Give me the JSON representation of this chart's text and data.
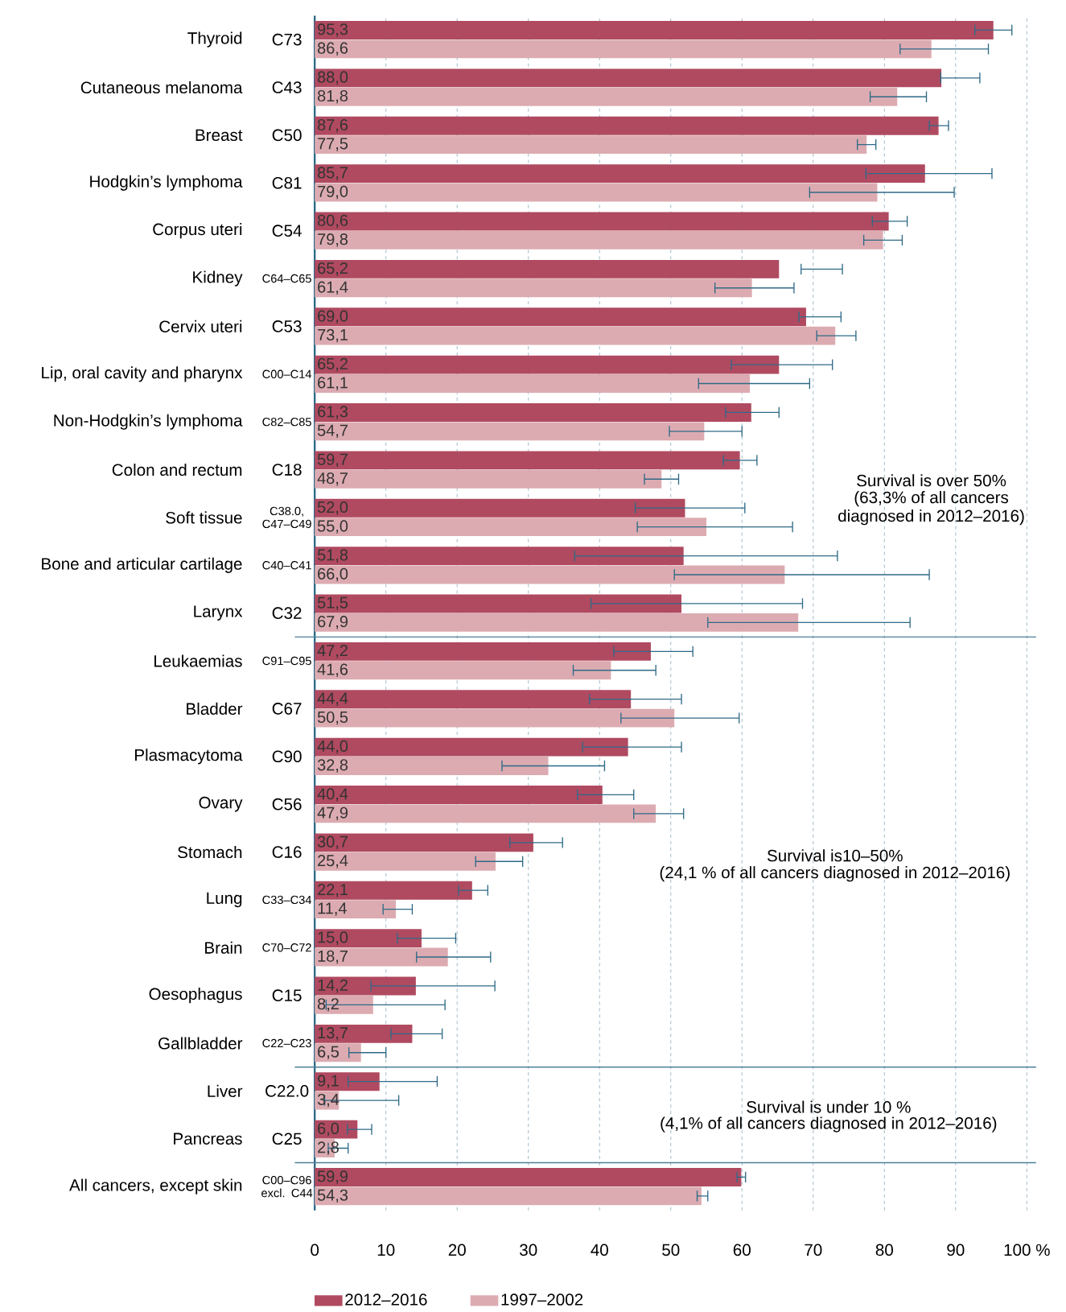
{
  "chart_data": {
    "type": "bar",
    "orientation": "horizontal",
    "categories": [
      "Thyroid",
      "Cutaneous melanoma",
      "Breast",
      "Hodgkin’s lymphoma",
      "Corpus uteri",
      "Kidney",
      "Cervix uteri",
      "Lip, oral cavity and pharynx",
      "Non-Hodgkin’s lymphoma",
      "Colon and rectum",
      "Soft tissue",
      "Bone and articular cartilage",
      "Larynx",
      "Leukaemias",
      "Bladder",
      "Plasmacytoma",
      "Ovary",
      "Stomach",
      "Lung",
      "Brain",
      "Oesophagus",
      "Gallbladder",
      "Liver",
      "Pancreas",
      "All cancers, except skin"
    ],
    "series": [
      {
        "name": "2012–2016",
        "color": "#b04a60",
        "values": [
          95.3,
          88.0,
          87.6,
          85.7,
          80.6,
          65.2,
          69.0,
          65.2,
          61.3,
          59.7,
          52.0,
          51.8,
          51.5,
          47.2,
          44.4,
          44.0,
          40.4,
          30.7,
          22.1,
          15.0,
          14.2,
          13.7,
          9.1,
          6.0,
          59.9
        ],
        "value_labels": [
          "95,3",
          "88,0",
          "87,6",
          "85,7",
          "80,6",
          "65,2",
          "69,0",
          "65,2",
          "61,3",
          "59,7",
          "52,0",
          "51,8",
          "51,5",
          "47,2",
          "44,4",
          "44,0",
          "40,4",
          "30,7",
          "22,1",
          "15,0",
          "14,2",
          "13,7",
          "9,1",
          "6,0",
          "59,9"
        ],
        "errors": [
          [
            92.7,
            97.9
          ],
          [
            87.9,
            93.4
          ],
          [
            86.3,
            89.0
          ],
          [
            77.4,
            95.1
          ],
          [
            78.3,
            83.2
          ],
          [
            68.3,
            74.1
          ],
          [
            68.0,
            73.9
          ],
          [
            58.5,
            72.7
          ],
          [
            57.7,
            65.2
          ],
          [
            57.4,
            62.1
          ],
          [
            45.0,
            60.4
          ],
          [
            36.5,
            73.4
          ],
          [
            38.8,
            68.5
          ],
          [
            42.0,
            53.1
          ],
          [
            38.6,
            51.5
          ],
          [
            37.6,
            51.5
          ],
          [
            36.9,
            44.8
          ],
          [
            27.4,
            34.8
          ],
          [
            20.2,
            24.3
          ],
          [
            11.6,
            19.8
          ],
          [
            7.9,
            25.3
          ],
          [
            10.7,
            17.9
          ],
          [
            4.7,
            17.2
          ],
          [
            4.6,
            8.0
          ],
          [
            59.3,
            60.5
          ]
        ]
      },
      {
        "name": "1997–2002",
        "color": "#dcabb1",
        "values": [
          86.6,
          81.8,
          77.5,
          79.0,
          79.8,
          61.4,
          73.1,
          61.1,
          54.7,
          48.7,
          55.0,
          66.0,
          67.9,
          41.6,
          50.5,
          32.8,
          47.9,
          25.4,
          11.4,
          18.7,
          8.2,
          6.5,
          3.4,
          2.8,
          54.3
        ],
        "value_labels": [
          "86,6",
          "81,8",
          "77,5",
          "79,0",
          "79,8",
          "61,4",
          "73,1",
          "61,1",
          "54,7",
          "48,7",
          "55,0",
          "66,0",
          "67,9",
          "41,6",
          "50,5",
          "32,8",
          "47,9",
          "25,4",
          "11,4",
          "18,7",
          "8,2",
          "6,5",
          "3,4",
          "2,8",
          "54,3"
        ],
        "errors": [
          [
            82.2,
            94.6
          ],
          [
            78.0,
            85.9
          ],
          [
            76.2,
            78.8
          ],
          [
            69.5,
            89.8
          ],
          [
            77.1,
            82.5
          ],
          [
            56.2,
            67.3
          ],
          [
            70.5,
            76.0
          ],
          [
            53.9,
            69.5
          ],
          [
            49.8,
            60.0
          ],
          [
            46.3,
            51.1
          ],
          [
            45.3,
            67.1
          ],
          [
            50.5,
            86.3
          ],
          [
            55.2,
            83.6
          ],
          [
            36.3,
            47.9
          ],
          [
            43.0,
            59.6
          ],
          [
            26.3,
            40.7
          ],
          [
            44.8,
            51.8
          ],
          [
            22.6,
            29.2
          ],
          [
            9.6,
            13.7
          ],
          [
            14.3,
            24.7
          ],
          [
            1.6,
            18.3
          ],
          [
            4.8,
            10.0
          ],
          [
            1.4,
            11.8
          ],
          [
            1.9,
            4.7
          ],
          [
            53.7,
            55.2
          ]
        ]
      }
    ],
    "xlim": [
      0,
      100
    ],
    "xticks": [
      0,
      10,
      20,
      30,
      40,
      50,
      60,
      70,
      80,
      90,
      {
        "value": 100,
        "label": "100 %"
      }
    ],
    "grid": "x",
    "legend": "bottom",
    "annotations": [
      "C73",
      "C43",
      "C50",
      "C81",
      "C54",
      "C64–C65",
      "C53",
      "C00–C14",
      "C82–C85",
      "C18",
      "C38.0, C47–C49",
      "C40–C41",
      "C32",
      "C91–C95",
      "C67",
      "C90",
      "C56",
      "C16",
      "C33–C34",
      "C70–C72",
      "C15",
      "C22–C23",
      "C22.0",
      "C25",
      "C00–C96 excl. C44",
      "Survival is over 50%",
      "(63,3% of all cancers",
      "diagnosed in 2012–2016)",
      "Survival is10–50%",
      "(24,1 % of all cancers diagnosed in 2012–2016)",
      "Survival is under 10 %",
      "(4,1% of all cancers diagnosed in 2012–2016)"
    ]
  }
}
